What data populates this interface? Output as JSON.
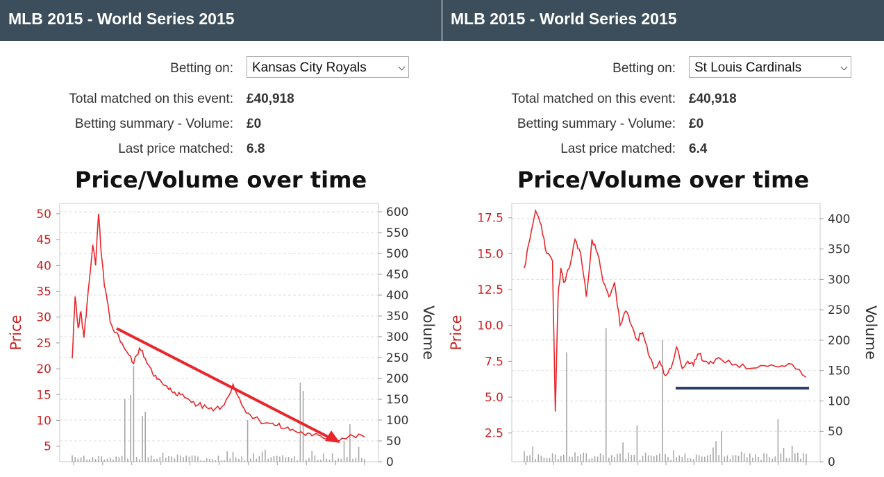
{
  "panels": [
    {
      "header_title": "MLB 2015 - World Series 2015",
      "betting_on_label": "Betting on:",
      "betting_on_value": "Kansas City Royals",
      "total_matched_label": "Total matched on this event:",
      "total_matched_value": "£40,918",
      "summary_label": "Betting summary - Volume:",
      "summary_value": "£0",
      "last_price_label": "Last price matched:",
      "last_price_value": "6.8"
    },
    {
      "header_title": "MLB 2015 - World Series 2015",
      "betting_on_label": "Betting on:",
      "betting_on_value": "St Louis Cardinals",
      "total_matched_label": "Total matched on this event:",
      "total_matched_value": "£40,918",
      "summary_label": "Betting summary - Volume:",
      "summary_value": "£0",
      "last_price_label": "Last price matched:",
      "last_price_value": "6.4"
    }
  ],
  "colors": {
    "header_bg": "#3c4e5b",
    "price_line": "#e8262b",
    "volume_bars": "#a8a8a8",
    "arrow": "#e8262b",
    "support_line": "#2b3f6b"
  },
  "chart_data": [
    {
      "type": "line",
      "title": "Price/Volume over time",
      "ylabel": "Price",
      "y2label": "Volume",
      "ylim": [
        2,
        52
      ],
      "y2lim": [
        0,
        620
      ],
      "yticks": [
        5,
        10,
        15,
        20,
        25,
        30,
        35,
        40,
        45,
        50
      ],
      "y2ticks": [
        0,
        50,
        100,
        150,
        200,
        250,
        300,
        350,
        400,
        450,
        500,
        550,
        600
      ],
      "x": [
        0,
        1,
        2,
        3,
        4,
        5,
        6,
        7,
        8,
        9,
        10,
        11,
        12,
        13,
        15,
        17,
        19,
        21,
        23,
        25,
        27,
        29,
        31,
        33,
        35,
        37,
        40,
        43,
        46,
        49,
        52,
        55,
        58,
        61,
        64,
        67,
        70,
        73,
        76,
        79,
        82,
        85,
        88,
        90,
        93,
        96,
        100
      ],
      "series": [
        {
          "values": [
            22,
            34,
            28,
            31,
            26,
            32,
            38,
            44,
            40,
            50,
            42,
            36,
            33,
            29,
            27,
            25,
            23,
            21,
            24,
            22,
            20,
            18,
            17,
            16,
            15.5,
            15,
            14,
            13,
            12.5,
            12.3,
            13,
            17,
            13,
            11,
            10,
            9.5,
            9,
            8.5,
            8,
            7.5,
            7,
            7,
            6.5,
            6.5,
            6.5,
            7,
            6.8
          ]
        }
      ],
      "volume_spikes": [
        {
          "x": 18,
          "v": 150
        },
        {
          "x": 20,
          "v": 160
        },
        {
          "x": 21,
          "v": 230
        },
        {
          "x": 24,
          "v": 110
        },
        {
          "x": 25,
          "v": 120
        },
        {
          "x": 60,
          "v": 100
        },
        {
          "x": 78,
          "v": 190
        },
        {
          "x": 79,
          "v": 170
        },
        {
          "x": 93,
          "v": 50
        },
        {
          "x": 95,
          "v": 90
        }
      ],
      "annotation": "downward trend arrow"
    },
    {
      "type": "line",
      "title": "Price/Volume over time",
      "ylabel": "Price",
      "y2label": "Volume",
      "ylim": [
        0.5,
        18.5
      ],
      "y2lim": [
        0,
        425
      ],
      "yticks": [
        2.5,
        5.0,
        7.5,
        10.0,
        12.5,
        15.0,
        17.5
      ],
      "ytick_labels": [
        "2.5",
        "5.0",
        "7.5",
        "10.0",
        "12.5",
        "15.0",
        "17.5"
      ],
      "y2ticks": [
        0,
        50,
        100,
        150,
        200,
        250,
        300,
        350,
        400
      ],
      "x": [
        0,
        2,
        4,
        6,
        8,
        10,
        11,
        12,
        13,
        14,
        16,
        18,
        20,
        22,
        24,
        26,
        28,
        30,
        32,
        34,
        36,
        38,
        40,
        42,
        44,
        46,
        48,
        50,
        52,
        54,
        56,
        58,
        60,
        62,
        64,
        66,
        70,
        75,
        80,
        85,
        90,
        95,
        100
      ],
      "series": [
        {
          "values": [
            14,
            16,
            18,
            17,
            15,
            14.5,
            4,
            12,
            14,
            13,
            14,
            16,
            15,
            12,
            16,
            15,
            13,
            12,
            13,
            10,
            11,
            10,
            9,
            9.5,
            8,
            7,
            7.5,
            6.5,
            7,
            8.5,
            7,
            7.5,
            7.2,
            8,
            7.5,
            7.5,
            7.6,
            7.3,
            7.0,
            7.2,
            7.1,
            7.3,
            6.4
          ]
        }
      ],
      "volume_spikes": [
        {
          "x": 15,
          "v": 180
        },
        {
          "x": 29,
          "v": 220
        },
        {
          "x": 49,
          "v": 200
        },
        {
          "x": 40,
          "v": 60
        },
        {
          "x": 70,
          "v": 50
        },
        {
          "x": 90,
          "v": 70
        }
      ],
      "annotation": "horizontal support line"
    }
  ]
}
